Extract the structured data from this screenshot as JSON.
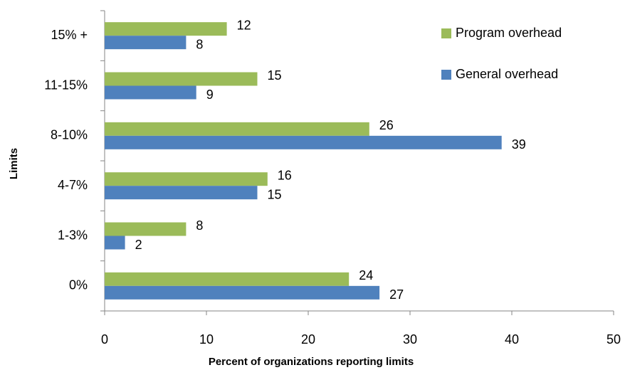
{
  "chart_data": {
    "type": "hbar",
    "y_label": "Limits",
    "x_label": "Percent of organizations reporting limits",
    "categories": [
      "0%",
      "1-3%",
      "4-7%",
      "8-10%",
      "11-15%",
      "15% +"
    ],
    "series": [
      {
        "name": "Program overhead",
        "color": "#9bbb59",
        "values": [
          24,
          8,
          16,
          26,
          15,
          12
        ]
      },
      {
        "name": "General overhead",
        "color": "#4f81bd",
        "values": [
          27,
          2,
          15,
          39,
          9,
          8
        ]
      }
    ],
    "xlim": [
      0,
      50
    ],
    "xticks": [
      0,
      10,
      20,
      30,
      40,
      50
    ],
    "legend": "top-right"
  }
}
